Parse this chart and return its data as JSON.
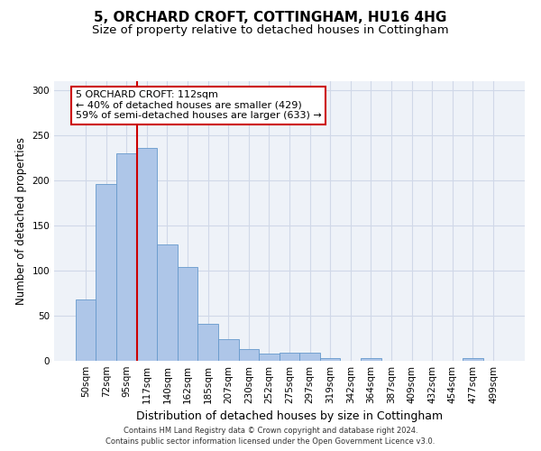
{
  "title": "5, ORCHARD CROFT, COTTINGHAM, HU16 4HG",
  "subtitle": "Size of property relative to detached houses in Cottingham",
  "xlabel": "Distribution of detached houses by size in Cottingham",
  "ylabel": "Number of detached properties",
  "categories": [
    "50sqm",
    "72sqm",
    "95sqm",
    "117sqm",
    "140sqm",
    "162sqm",
    "185sqm",
    "207sqm",
    "230sqm",
    "252sqm",
    "275sqm",
    "297sqm",
    "319sqm",
    "342sqm",
    "364sqm",
    "387sqm",
    "409sqm",
    "432sqm",
    "454sqm",
    "477sqm",
    "499sqm"
  ],
  "values": [
    68,
    196,
    230,
    236,
    129,
    104,
    41,
    24,
    13,
    8,
    9,
    9,
    3,
    0,
    3,
    0,
    0,
    0,
    0,
    3,
    0
  ],
  "bar_color": "#aec6e8",
  "bar_edgecolor": "#6699cc",
  "vline_color": "#cc0000",
  "vline_pos": 2.5,
  "annotation_text_line1": "5 ORCHARD CROFT: 112sqm",
  "annotation_text_line2": "← 40% of detached houses are smaller (429)",
  "annotation_text_line3": "59% of semi-detached houses are larger (633) →",
  "annotation_box_color": "#ffffff",
  "annotation_box_edgecolor": "#cc0000",
  "ylim": [
    0,
    310
  ],
  "yticks": [
    0,
    50,
    100,
    150,
    200,
    250,
    300
  ],
  "grid_color": "#d0d8e8",
  "background_color": "#eef2f8",
  "footer1": "Contains HM Land Registry data © Crown copyright and database right 2024.",
  "footer2": "Contains public sector information licensed under the Open Government Licence v3.0.",
  "title_fontsize": 11,
  "subtitle_fontsize": 9.5,
  "ylabel_fontsize": 8.5,
  "xlabel_fontsize": 9,
  "tick_fontsize": 7.5,
  "annotation_fontsize": 8,
  "footer_fontsize": 6
}
